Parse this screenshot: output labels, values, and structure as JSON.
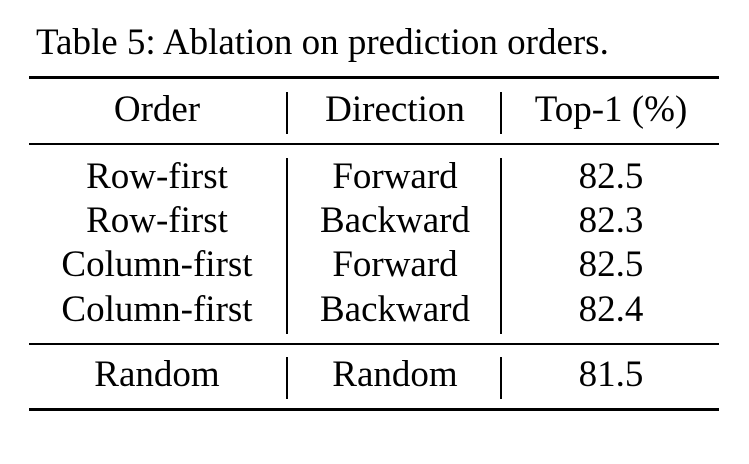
{
  "caption": "Table 5: Ablation on prediction orders.",
  "header": {
    "order": "Order",
    "direction": "Direction",
    "top1": "Top-1 (%)"
  },
  "rows": [
    {
      "order": "Row-first",
      "direction": "Forward",
      "top1": "82.5"
    },
    {
      "order": "Row-first",
      "direction": "Backward",
      "top1": "82.3"
    },
    {
      "order": "Column-first",
      "direction": "Forward",
      "top1": "82.5"
    },
    {
      "order": "Column-first",
      "direction": "Backward",
      "top1": "82.4"
    }
  ],
  "random_row": {
    "order": "Random",
    "direction": "Random",
    "top1": "81.5"
  }
}
